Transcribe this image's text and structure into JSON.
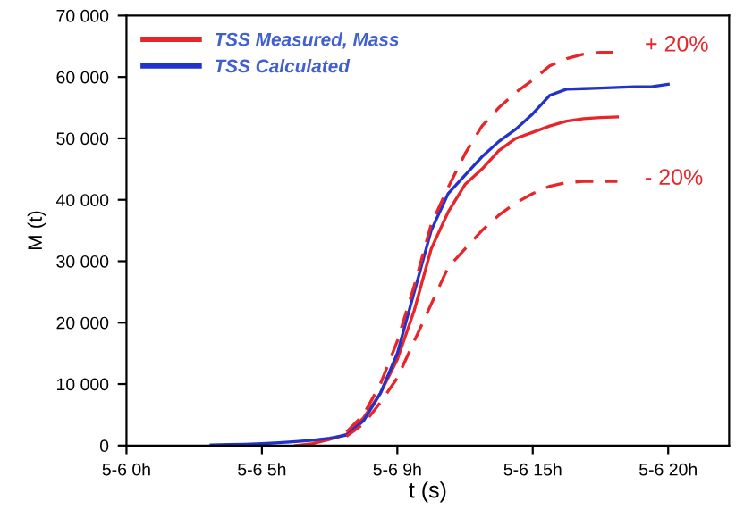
{
  "chart_data": {
    "type": "line",
    "xlabel": "t (s)",
    "ylabel": "M (t)",
    "categories": [
      "5-6 0h",
      null,
      null,
      null,
      null,
      null,
      null,
      null,
      "5-6 5h",
      null,
      null,
      null,
      null,
      null,
      null,
      null,
      "5-6 9h",
      null,
      null,
      null,
      null,
      null,
      null,
      null,
      "5-6 15h",
      null,
      null,
      null,
      null,
      null,
      null,
      null,
      "5-6 20h",
      null,
      null,
      null
    ],
    "ylim": [
      0,
      70000
    ],
    "yticks": [
      {
        "value": 0,
        "label": "0"
      },
      {
        "value": 10000,
        "label": "10 000"
      },
      {
        "value": 20000,
        "label": "20 000"
      },
      {
        "value": 30000,
        "label": "30 000"
      },
      {
        "value": 40000,
        "label": "40 000"
      },
      {
        "value": 50000,
        "label": "50 000"
      },
      {
        "value": 60000,
        "label": "60 000"
      },
      {
        "value": 70000,
        "label": "70 000"
      }
    ],
    "grid": false,
    "legend": "top left",
    "marker": "none",
    "series": [
      {
        "name": "TSS Measured, Mass",
        "color": "#e8262a",
        "line_style": "solid",
        "values": [
          null,
          null,
          null,
          null,
          null,
          null,
          null,
          null,
          null,
          null,
          0,
          300,
          1000,
          1800,
          4500,
          8500,
          14000,
          22000,
          32000,
          38000,
          42500,
          45000,
          48000,
          50000,
          51000,
          52000,
          52800,
          53200,
          53400,
          53500,
          null,
          null,
          null,
          null,
          null,
          null
        ]
      },
      {
        "name": "TSS Calculated",
        "color": "#2233cc",
        "line_style": "solid",
        "values": [
          null,
          null,
          null,
          null,
          null,
          100,
          150,
          200,
          300,
          450,
          650,
          850,
          1200,
          1700,
          4000,
          8500,
          15000,
          25000,
          35000,
          41000,
          44000,
          47000,
          49500,
          51500,
          54000,
          57000,
          58000,
          58100,
          58200,
          58300,
          58400,
          58400,
          58800,
          null,
          null,
          null
        ]
      },
      {
        "color": "#e8262a",
        "line_style": "dashed",
        "values": [
          null,
          null,
          null,
          null,
          null,
          null,
          null,
          null,
          null,
          null,
          null,
          null,
          null,
          2200,
          5000,
          10000,
          17000,
          26000,
          36000,
          42000,
          47500,
          52000,
          55000,
          57500,
          59500,
          61800,
          63000,
          63700,
          64000,
          64000,
          null,
          null,
          null,
          null,
          null,
          null
        ]
      },
      {
        "color": "#e8262a",
        "line_style": "dashed",
        "values": [
          null,
          null,
          null,
          null,
          null,
          null,
          null,
          null,
          null,
          null,
          null,
          null,
          null,
          1500,
          3500,
          7000,
          11000,
          17000,
          23000,
          29000,
          32000,
          35000,
          37500,
          39500,
          41000,
          42200,
          42800,
          43000,
          43000,
          43000,
          null,
          null,
          null,
          null,
          null,
          null
        ]
      }
    ],
    "annotations": [
      "+ 20%",
      "- 20%"
    ]
  }
}
